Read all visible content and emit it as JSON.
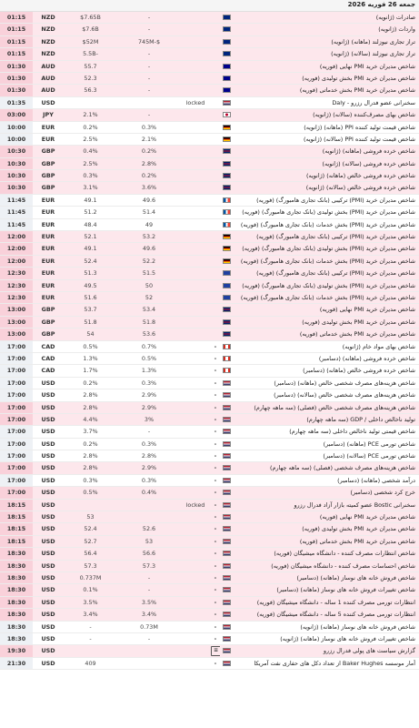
{
  "header": {
    "date": "جمعه 26 فوریه 2026"
  },
  "rows": [
    {
      "time": "01:15",
      "cur": "NZD",
      "prev": "$7.65B",
      "fc": "-",
      "act": "",
      "imp": "",
      "flag": "nzd",
      "name": "صادرات (ژانویه)",
      "night": true
    },
    {
      "time": "01:15",
      "cur": "NZD",
      "prev": "$7.6B",
      "fc": "-",
      "act": "",
      "imp": "",
      "flag": "nzd",
      "name": "واردات (ژانویه)",
      "night": true
    },
    {
      "time": "01:15",
      "cur": "NZD",
      "prev": "$52M",
      "fc": "745M-$",
      "act": "",
      "imp": "",
      "flag": "nzd",
      "name": "تراز تجاری نیوزلند (ماهانه) (ژانویه)",
      "night": true
    },
    {
      "time": "01:15",
      "cur": "NZD",
      "prev": "5.5B-",
      "fc": "-",
      "act": "",
      "imp": "",
      "flag": "nzd",
      "name": "تراز تجاری نیوزلند (سالانه) (ژانویه)",
      "night": true
    },
    {
      "time": "01:30",
      "cur": "AUD",
      "prev": "55.7",
      "fc": "-",
      "act": "",
      "imp": "",
      "flag": "aud",
      "name": "شاخص مدیران خرید PMI نهایی (فوریه)",
      "night": true
    },
    {
      "time": "01:30",
      "cur": "AUD",
      "prev": "52.3",
      "fc": "-",
      "act": "",
      "imp": "",
      "flag": "aud",
      "name": "شاخص مدیران خرید PMI بخش تولیدی (فوریه)",
      "night": true
    },
    {
      "time": "01:30",
      "cur": "AUD",
      "prev": "56.3",
      "fc": "-",
      "act": "",
      "imp": "",
      "flag": "aud",
      "name": "شاخص مدیران خرید PMI بخش خدماتی (فوریه)",
      "night": true
    },
    {
      "time": "01:35",
      "cur": "USD",
      "prev": "",
      "fc": "",
      "act": "locked",
      "imp": "",
      "flag": "usd",
      "name": "سخنرانی عضو فدرال رزرو - Daly",
      "night": false
    },
    {
      "time": "03:00",
      "cur": "JPY",
      "prev": "2.1%",
      "fc": "-",
      "act": "",
      "imp": "",
      "flag": "jpy",
      "name": "شاخص بهای مصرف‌کننده (سالانه) (ژانویه)",
      "night": true
    },
    {
      "time": "10:00",
      "cur": "EUR",
      "prev": "0.2%",
      "fc": "0.3%",
      "act": "",
      "imp": "",
      "flag": "deu",
      "name": "شاخص قیمت تولید کننده PPI (ماهانه) (ژانویه)",
      "night": false
    },
    {
      "time": "10:00",
      "cur": "EUR",
      "prev": "2.5%",
      "fc": "2.1%",
      "act": "",
      "imp": "",
      "flag": "deu",
      "name": "شاخص قیمت تولید کننده PPI (سالانه) (ژانویه)",
      "night": false
    },
    {
      "time": "10:30",
      "cur": "GBP",
      "prev": "0.4%",
      "fc": "0.2%",
      "act": "",
      "imp": "",
      "flag": "gbp",
      "name": "شاخص خرده فروشی (ماهانه) (ژانویه)",
      "night": true
    },
    {
      "time": "10:30",
      "cur": "GBP",
      "prev": "2.5%",
      "fc": "2.8%",
      "act": "",
      "imp": "",
      "flag": "gbp",
      "name": "شاخص خرده فروشی (سالانه) (ژانویه)",
      "night": true
    },
    {
      "time": "10:30",
      "cur": "GBP",
      "prev": "0.3%",
      "fc": "0.2%",
      "act": "",
      "imp": "",
      "flag": "gbp",
      "name": "شاخص خرده فروشی خالص (ماهانه) (ژانویه)",
      "night": true
    },
    {
      "time": "10:30",
      "cur": "GBP",
      "prev": "3.1%",
      "fc": "3.6%",
      "act": "",
      "imp": "",
      "flag": "gbp",
      "name": "شاخص خرده فروشی خالص (سالانه) (ژانویه)",
      "night": true
    },
    {
      "time": "11:45",
      "cur": "EUR",
      "prev": "49.1",
      "fc": "49.6",
      "act": "",
      "imp": "",
      "flag": "frc",
      "name": "شاخص مدیران خرید (PMI) ترکیبی (بانک تجاری هامبورگ) (فوریه)",
      "night": false
    },
    {
      "time": "11:45",
      "cur": "EUR",
      "prev": "51.2",
      "fc": "51.4",
      "act": "",
      "imp": "",
      "flag": "frc",
      "name": "شاخص مدیران خرید (PMI) بخش تولیدی (بانک تجاری هامبورگ) (فوریه)",
      "night": false
    },
    {
      "time": "11:45",
      "cur": "EUR",
      "prev": "48.4",
      "fc": "49",
      "act": "",
      "imp": "",
      "flag": "frc",
      "name": "شاخص مدیران خرید (PMI) بخش خدمات (بانک تجاری هامبورگ) (فوریه)",
      "night": false
    },
    {
      "time": "12:00",
      "cur": "EUR",
      "prev": "52.1",
      "fc": "53.2",
      "act": "",
      "imp": "",
      "flag": "deu",
      "name": "شاخص مدیران خرید (PMI) ترکیبی (بانک تجاری هامبورگ) (فوریه)",
      "night": true
    },
    {
      "time": "12:00",
      "cur": "EUR",
      "prev": "49.1",
      "fc": "49.6",
      "act": "",
      "imp": "",
      "flag": "deu",
      "name": "شاخص مدیران خرید (PMI) بخش تولیدی (بانک تجاری هامبورگ) (فوریه)",
      "night": true
    },
    {
      "time": "12:00",
      "cur": "EUR",
      "prev": "52.4",
      "fc": "52.2",
      "act": "",
      "imp": "",
      "flag": "deu",
      "name": "شاخص مدیران خرید (PMI) بخش خدمات (بانک تجاری هامبورگ) (فوریه)",
      "night": true
    },
    {
      "time": "12:30",
      "cur": "EUR",
      "prev": "51.3",
      "fc": "51.5",
      "act": "",
      "imp": "",
      "flag": "eur",
      "name": "شاخص مدیران خرید (PMI) ترکیبی (بانک تجاری هامبورگ) (فوریه)",
      "night": true
    },
    {
      "time": "12:30",
      "cur": "EUR",
      "prev": "49.5",
      "fc": "50",
      "act": "",
      "imp": "",
      "flag": "eur",
      "name": "شاخص مدیران خرید (PMI) بخش تولیدی (بانک تجاری هامبورگ) (فوریه)",
      "night": true
    },
    {
      "time": "12:30",
      "cur": "EUR",
      "prev": "51.6",
      "fc": "52",
      "act": "",
      "imp": "",
      "flag": "eur",
      "name": "شاخص مدیران خرید (PMI) بخش خدمات (بانک تجاری هامبورگ) (فوریه)",
      "night": true
    },
    {
      "time": "13:00",
      "cur": "GBP",
      "prev": "53.7",
      "fc": "53.4",
      "act": "",
      "imp": "",
      "flag": "gbp",
      "name": "شاخص مدیران خرید PMI نهایی (فوریه)",
      "night": true
    },
    {
      "time": "13:00",
      "cur": "GBP",
      "prev": "51.8",
      "fc": "51.8",
      "act": "",
      "imp": "",
      "flag": "gbp",
      "name": "شاخص مدیران خرید PMI بخش تولیدی (فوریه)",
      "night": true
    },
    {
      "time": "13:00",
      "cur": "GBP",
      "prev": "54",
      "fc": "53.6",
      "act": "",
      "imp": "",
      "flag": "gbp",
      "name": "شاخص مدیران خرید PMI بخش خدماتی (فوریه)",
      "night": true
    },
    {
      "time": "17:00",
      "cur": "CAD",
      "prev": "0.5%",
      "fc": "0.7%",
      "act": "",
      "imp": "-",
      "flag": "cad",
      "name": "شاخص بهای مواد خام (ژانویه)",
      "night": false
    },
    {
      "time": "17:00",
      "cur": "CAD",
      "prev": "1.3%",
      "fc": "0.5%",
      "act": "",
      "imp": "-",
      "flag": "cad",
      "name": "شاخص خرده فروشی (ماهانه) (دسامبر)",
      "night": false
    },
    {
      "time": "17:00",
      "cur": "CAD",
      "prev": "1.7%",
      "fc": "1.3%",
      "act": "",
      "imp": "-",
      "flag": "cad",
      "name": "شاخص خرده فروشی خالص (ماهانه) (دسامبر)",
      "night": false
    },
    {
      "time": "17:00",
      "cur": "USD",
      "prev": "0.2%",
      "fc": "0.3%",
      "act": "",
      "imp": "-",
      "flag": "usd",
      "name": "شاخص هزینه‌های مصرف شخصی خالص (ماهانه) (دسامبر)",
      "night": false
    },
    {
      "time": "17:00",
      "cur": "USD",
      "prev": "2.8%",
      "fc": "2.9%",
      "act": "",
      "imp": "-",
      "flag": "usd",
      "name": "شاخص هزینه‌های مصرف شخصی خالص (سالانه) (دسامبر)",
      "night": false
    },
    {
      "time": "17:00",
      "cur": "USD",
      "prev": "2.8%",
      "fc": "2.9%",
      "act": "",
      "imp": "-",
      "flag": "usd",
      "name": "شاخص هزینه‌های مصرف شخصی خالص (فصلی) (سه ماهه چهارم)",
      "night": true
    },
    {
      "time": "17:00",
      "cur": "USD",
      "prev": "4.4%",
      "fc": "3%",
      "act": "",
      "imp": "-",
      "flag": "usd",
      "name": "تولید ناخالص داخلی / GDP (سه ماهه چهارم)",
      "night": true
    },
    {
      "time": "17:00",
      "cur": "USD",
      "prev": "3.7%",
      "fc": "-",
      "act": "",
      "imp": "-",
      "flag": "usd",
      "name": "شاخص قیمتی تولید ناخالص داخلی (سه ماهه چهارم)",
      "night": false
    },
    {
      "time": "17:00",
      "cur": "USD",
      "prev": "0.2%",
      "fc": "0.3%",
      "act": "",
      "imp": "-",
      "flag": "usd",
      "name": "شاخص تورمی PCE (ماهانه) (دسامبر)",
      "night": false
    },
    {
      "time": "17:00",
      "cur": "USD",
      "prev": "2.8%",
      "fc": "2.8%",
      "act": "",
      "imp": "-",
      "flag": "usd",
      "name": "شاخص تورمی PCE (سالانه) (دسامبر)",
      "night": false
    },
    {
      "time": "17:00",
      "cur": "USD",
      "prev": "2.8%",
      "fc": "2.9%",
      "act": "",
      "imp": "-",
      "flag": "usd",
      "name": "شاخص هزینه‌های مصرف شخصی (فصلی) (سه ماهه چهارم)",
      "night": true
    },
    {
      "time": "17:00",
      "cur": "USD",
      "prev": "0.3%",
      "fc": "0.3%",
      "act": "",
      "imp": "-",
      "flag": "usd",
      "name": "درآمد شخصی (ماهانه) (دسامبر)",
      "night": false
    },
    {
      "time": "17:00",
      "cur": "USD",
      "prev": "0.5%",
      "fc": "0.4%",
      "act": "",
      "imp": "-",
      "flag": "usd",
      "name": "خرج کرد شخصی (دسامبر)",
      "night": true
    },
    {
      "time": "18:15",
      "cur": "USD",
      "prev": "",
      "fc": "",
      "act": "locked",
      "imp": "-",
      "flag": "usd",
      "name": "سخنرانی Bostic عضو کمیته بازار آزاد فدرال رزرو",
      "night": true
    },
    {
      "time": "18:15",
      "cur": "USD",
      "prev": "53",
      "fc": "",
      "act": "",
      "imp": "-",
      "flag": "usd",
      "name": "شاخص مدیران خرید PMI نهایی (فوریه)",
      "night": true
    },
    {
      "time": "18:15",
      "cur": "USD",
      "prev": "52.4",
      "fc": "52.6",
      "act": "",
      "imp": "-",
      "flag": "usd",
      "name": "شاخص مدیران خرید PMI بخش تولیدی (فوریه)",
      "night": true
    },
    {
      "time": "18:15",
      "cur": "USD",
      "prev": "52.7",
      "fc": "53",
      "act": "",
      "imp": "-",
      "flag": "usd",
      "name": "شاخص مدیران خرید PMI بخش خدماتی (فوریه)",
      "night": true
    },
    {
      "time": "18:30",
      "cur": "USD",
      "prev": "56.4",
      "fc": "56.6",
      "act": "",
      "imp": "-",
      "flag": "usd",
      "name": "شاخص انتظارات مصرف کننده - دانشگاه میشیگان (فوریه)",
      "night": true
    },
    {
      "time": "18:30",
      "cur": "USD",
      "prev": "57.3",
      "fc": "57.3",
      "act": "",
      "imp": "-",
      "flag": "usd",
      "name": "شاخص احساسات مصرف کننده - دانشگاه میشیگان (فوریه)",
      "night": true
    },
    {
      "time": "18:30",
      "cur": "USD",
      "prev": "0.737M",
      "fc": "-",
      "act": "",
      "imp": "-",
      "flag": "usd",
      "name": "شاخص فروش خانه های نوساز (ماهانه) (دسامبر)",
      "night": true
    },
    {
      "time": "18:30",
      "cur": "USD",
      "prev": "0.1%",
      "fc": "-",
      "act": "",
      "imp": "-",
      "flag": "usd",
      "name": "شاخص تغییرات فروش خانه های نوساز (ماهانه) (دسامبر)",
      "night": true
    },
    {
      "time": "18:30",
      "cur": "USD",
      "prev": "3.5%",
      "fc": "3.5%",
      "act": "",
      "imp": "-",
      "flag": "usd",
      "name": "انتظارات تورمی مصرف کننده 1 ساله - دانشگاه میشیگان (فوریه)",
      "night": true
    },
    {
      "time": "18:30",
      "cur": "USD",
      "prev": "3.4%",
      "fc": "3.4%",
      "act": "",
      "imp": "-",
      "flag": "usd",
      "name": "انتظارات تورمی مصرف کننده 5 ساله - دانشگاه میشیگان (فوریه)",
      "night": true
    },
    {
      "time": "18:30",
      "cur": "USD",
      "prev": "-",
      "fc": "0.73M",
      "act": "",
      "imp": "-",
      "flag": "usd",
      "name": "شاخص فروش خانه های نوساز (ماهانه) (ژانویه)",
      "night": false
    },
    {
      "time": "18:30",
      "cur": "USD",
      "prev": "-",
      "fc": "-",
      "act": "",
      "imp": "-",
      "flag": "usd",
      "name": "شاخص تغییرات فروش خانه های نوساز (ماهانه) (ژانویه)",
      "night": false
    },
    {
      "time": "19:30",
      "cur": "USD",
      "prev": "",
      "fc": "",
      "act": "",
      "imp": "pill",
      "flag": "usd",
      "name": "گزارش سیاست های پولی فدرال رزرو",
      "night": true
    },
    {
      "time": "21:30",
      "cur": "USD",
      "prev": "409",
      "fc": "",
      "act": "",
      "imp": "-",
      "flag": "usd",
      "name": "آمار موسسه Baker Hughes از تعداد دکل های حفاری نفت آمریکا",
      "night": false
    }
  ]
}
